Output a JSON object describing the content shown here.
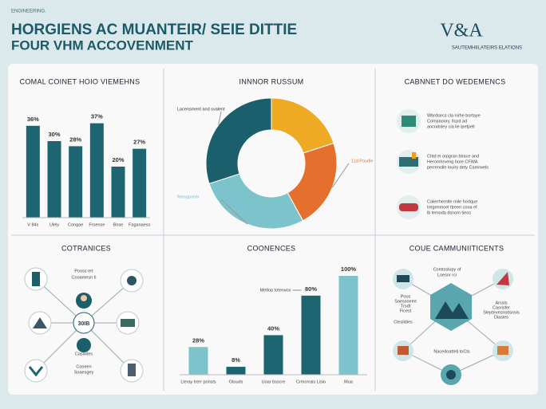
{
  "header": {
    "kicker": "ENGINEERING.",
    "title_line1": "HORGIENS AC MUANTEIR/ SEIE DITTIE",
    "title_line2": "FOUR VHM ACCOVENMENT",
    "logo": "V&A",
    "logo_subtitle": "SAUTEMHIILATEIRS ELATIONS"
  },
  "chart_data": [
    {
      "type": "bar",
      "title": "COMAL COINET HOIO VIEMEHNS",
      "categories": [
        "V 84s",
        "Ulely",
        "Congae",
        "Frsense",
        "Bose",
        "Faganaess"
      ],
      "values": [
        36,
        30,
        28,
        37,
        20,
        27
      ],
      "value_labels": [
        "36%",
        "30%",
        "28%",
        "37%",
        "20%",
        "27%"
      ],
      "colors": [
        "#1c6470",
        "#1c6470",
        "#1c6470",
        "#1c6470",
        "#1c6470",
        "#1c6470"
      ],
      "ylim": [
        0,
        40
      ]
    },
    {
      "type": "pie",
      "title": "INNNOR RUSSUM",
      "categories": [
        null,
        "11d Poudie",
        "Meogpaner",
        "Lacensment and svalent"
      ],
      "values": [
        20,
        22,
        28,
        30
      ],
      "colors": [
        "#eeaa22",
        "#e5702e",
        "#7cc3cc",
        "#1a5f6b"
      ]
    },
    {
      "type": "bar",
      "title": "COONENCES",
      "annotation": "Metlop toterwos",
      "categories": [
        "Lleray trerr ponsts",
        "Gtuuds",
        "Uoar bsscre",
        "Crmorrais Lisio",
        "Mua"
      ],
      "values": [
        28,
        8,
        40,
        80,
        100
      ],
      "value_labels": [
        "28%",
        "8%",
        "40%",
        "80%",
        "100%"
      ],
      "colors": [
        "#7cc3cc",
        "#1c6470",
        "#1c6470",
        "#1c6470",
        "#7cc3cc"
      ],
      "ylim": [
        0,
        100
      ]
    }
  ],
  "recommend": {
    "title": "CABNNET DO WEDEMENCS",
    "items": [
      [
        "Wbrdsecs cla nirhe bortaye",
        "Compaoory, llcpd ad",
        "aocodstey cia lie ipetpell"
      ],
      [
        "Chtd ei orpgran blrace and",
        "Heromhrveng hore CFWA",
        "perrenolle louiry dety Camrwels"
      ],
      [
        "Calerrhemtle mlie hortque",
        "Iregenmoel ttreen cooa ef",
        "lb lemoda dsnom tieos"
      ]
    ]
  },
  "network": {
    "title": "COTRANICES",
    "center": "30IB",
    "top_label": [
      "Pooss ert",
      "Cooamesn ti"
    ],
    "middle_label": "Casiwtes",
    "bottom_label": [
      "Cooeen",
      "Soaesgey"
    ]
  },
  "communities": {
    "title": "COUE CAMMUNIITICENTS",
    "top_label": [
      "Comtsslupy of",
      "Loesor rci"
    ],
    "left_label": [
      "Poos",
      "Saessoemt",
      "Trsdt",
      "Ficest"
    ],
    "right_label": [
      "Arssls",
      "Casrisfer",
      "Sleptevesrisdsnsis",
      "Diasles"
    ],
    "left_bottom_label": "Clesildies",
    "bottom_label": "Nacedoatteti toCts"
  }
}
